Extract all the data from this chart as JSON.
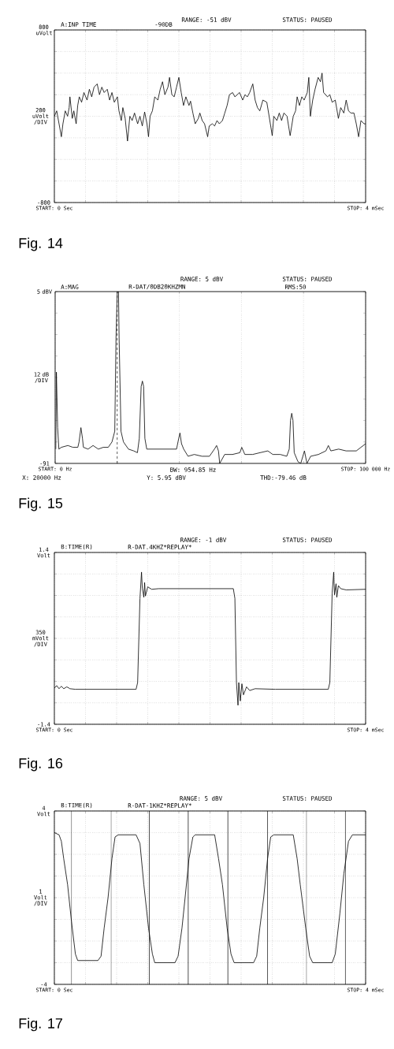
{
  "chart_data": [
    {
      "type": "line",
      "title": "A:INP TIME",
      "subtitle": "-90DB",
      "ylabel": "200 uVolt /DIV",
      "color": "#000000",
      "grid": true,
      "annotations": [
        "RANGE: -51 dBV",
        "STATUS: PAUSED",
        "Fig. 14"
      ],
      "xlim": [
        0,
        4
      ],
      "ylim": [
        -800,
        800
      ],
      "xticks": [
        {
          "value": 0,
          "label": "START: 0 Sec"
        },
        {
          "value": 0.4,
          "label": null
        },
        {
          "value": 0.8,
          "label": null
        },
        {
          "value": 1.2,
          "label": null
        },
        {
          "value": 1.6,
          "label": null
        },
        {
          "value": 2,
          "label": null
        },
        {
          "value": 2.4,
          "label": null
        },
        {
          "value": 2.8,
          "label": null
        },
        {
          "value": 3.2,
          "label": null
        },
        {
          "value": 3.6,
          "label": null
        },
        {
          "value": 4,
          "label": "STOP: 4 mSec"
        }
      ],
      "yticks": [
        {
          "value": -800,
          "label": "-800"
        },
        {
          "value": -600,
          "label": null
        },
        {
          "value": -400,
          "label": null
        },
        {
          "value": -200,
          "label": null
        },
        {
          "value": 0,
          "label": null
        },
        {
          "value": 200,
          "label": null
        },
        {
          "value": 400,
          "label": null
        },
        {
          "value": 600,
          "label": null
        },
        {
          "value": 800,
          "label": "800 uVolt"
        }
      ],
      "x": [
        0,
        0.03,
        0.06,
        0.09,
        0.11,
        0.14,
        0.17,
        0.19,
        0.2,
        0.23,
        0.25,
        0.28,
        0.3,
        0.32,
        0.35,
        0.38,
        0.42,
        0.45,
        0.48,
        0.51,
        0.55,
        0.58,
        0.61,
        0.64,
        0.68,
        0.71,
        0.74,
        0.77,
        0.81,
        0.83,
        0.86,
        0.88,
        0.91,
        0.94,
        0.97,
        1.0,
        1.03,
        1.07,
        1.1,
        1.13,
        1.16,
        1.19,
        1.21,
        1.23,
        1.26,
        1.29,
        1.33,
        1.36,
        1.39,
        1.42,
        1.46,
        1.48,
        1.51,
        1.54,
        1.57,
        1.6,
        1.63,
        1.66,
        1.69,
        1.73,
        1.75,
        1.78,
        1.81,
        1.85,
        1.87,
        1.9,
        1.93,
        1.97,
        1.99,
        2.03,
        2.06,
        2.09,
        2.12,
        2.16,
        2.19,
        2.22,
        2.25,
        2.29,
        2.32,
        2.35,
        2.38,
        2.42,
        2.45,
        2.48,
        2.51,
        2.55,
        2.58,
        2.61,
        2.64,
        2.68,
        2.73,
        2.76,
        2.8,
        2.82,
        2.86,
        2.89,
        2.92,
        2.95,
        2.99,
        3.03,
        3.07,
        3.1,
        3.12,
        3.15,
        3.18,
        3.21,
        3.25,
        3.27,
        3.29,
        3.32,
        3.35,
        3.39,
        3.42,
        3.44,
        3.46,
        3.51,
        3.54,
        3.57,
        3.61,
        3.65,
        3.68,
        3.72,
        3.75,
        3.78,
        3.81,
        3.85,
        3.88,
        3.91,
        3.94,
        3.98,
        4.0
      ],
      "values": [
        0,
        50,
        -70,
        -190,
        -70,
        50,
        0,
        80,
        180,
        -20,
        50,
        -70,
        100,
        180,
        130,
        220,
        150,
        250,
        180,
        270,
        300,
        200,
        270,
        220,
        250,
        150,
        220,
        130,
        180,
        50,
        -40,
        80,
        -20,
        -230,
        0,
        -40,
        30,
        -70,
        0,
        -90,
        40,
        -70,
        -190,
        0,
        50,
        180,
        150,
        250,
        320,
        200,
        270,
        360,
        200,
        180,
        270,
        360,
        220,
        100,
        180,
        100,
        140,
        30,
        -70,
        -20,
        30,
        -40,
        -70,
        -190,
        -90,
        -70,
        -90,
        -40,
        -70,
        -40,
        30,
        100,
        200,
        220,
        180,
        200,
        220,
        150,
        200,
        180,
        220,
        300,
        150,
        80,
        50,
        150,
        130,
        0,
        -180,
        0,
        -40,
        30,
        -40,
        30,
        0,
        -180,
        0,
        50,
        180,
        100,
        180,
        150,
        220,
        360,
        0,
        150,
        250,
        360,
        320,
        400,
        220,
        180,
        200,
        130,
        150,
        -20,
        80,
        30,
        150,
        50,
        30,
        30,
        -70,
        -190,
        -40,
        -70,
        -70
      ]
    },
    {
      "type": "line",
      "title": "A:MAG",
      "subtitle": "R-DAT/0DB20KHZMN",
      "ylabel": "12 dB /DIV",
      "color": "#000000",
      "grid": "x",
      "annotations": [
        "RANGE: 5 dBV",
        "STATUS: PAUSED",
        "RMS:50",
        "BW: 954.85 Hz",
        "X: 20000 Hz",
        "Y: 5.95 dBV",
        "THD:-79.46 dB",
        "Fig. 15"
      ],
      "ref_lines": [
        {
          "axis": "x",
          "value": 20000,
          "line_style": "dashed"
        }
      ],
      "xlim": [
        0,
        100000
      ],
      "ylim": [
        -91,
        5
      ],
      "xticks": [
        {
          "value": 0,
          "label": "START: 0 Hz"
        },
        {
          "value": 20000,
          "label": null
        },
        {
          "value": 40000,
          "label": null
        },
        {
          "value": 60000,
          "label": null
        },
        {
          "value": 80000,
          "label": null
        },
        {
          "value": 100000,
          "label": "STOP: 100 000 Hz"
        }
      ],
      "yticks": [
        {
          "value": -91,
          "label": "-91"
        },
        {
          "value": -79,
          "label": null
        },
        {
          "value": -67,
          "label": null
        },
        {
          "value": -55,
          "label": null
        },
        {
          "value": -43,
          "label": null
        },
        {
          "value": -31,
          "label": null
        },
        {
          "value": -19,
          "label": null
        },
        {
          "value": -7,
          "label": null
        },
        {
          "value": 5,
          "label": "5 dBV"
        }
      ],
      "x": [
        200,
        400,
        800,
        1200,
        2000,
        4100,
        5700,
        7300,
        7700,
        8300,
        8800,
        9100,
        10600,
        12200,
        13900,
        15500,
        17100,
        18300,
        19200,
        19600,
        20000,
        20400,
        20600,
        21200,
        22000,
        23600,
        25300,
        26500,
        27100,
        27700,
        28100,
        28500,
        28900,
        29500,
        31800,
        35000,
        36700,
        39100,
        39800,
        40200,
        40700,
        41400,
        42800,
        44800,
        47300,
        49700,
        51300,
        52000,
        52600,
        53000,
        54600,
        57100,
        59500,
        60100,
        61100,
        63600,
        66000,
        68500,
        70100,
        72500,
        74600,
        75400,
        75800,
        76200,
        76600,
        77000,
        78200,
        79100,
        80300,
        81100,
        82300,
        84800,
        87200,
        88000,
        88800,
        91300,
        93700,
        97000,
        100000
      ],
      "values": [
        -83,
        -40,
        -71,
        -83,
        -82,
        -81,
        -82,
        -82,
        -79,
        -71,
        -77,
        -82,
        -83,
        -81,
        -83,
        -82,
        -82,
        -79,
        -73,
        -21,
        5,
        5,
        -21,
        -73,
        -79,
        -83,
        -84,
        -85,
        -77,
        -48,
        -45,
        -48,
        -77,
        -83,
        -83,
        -83,
        -83,
        -83,
        -77,
        -74,
        -80,
        -83,
        -87,
        -86,
        -87,
        -87,
        -83,
        -81,
        -84,
        -91,
        -86,
        -86,
        -85,
        -82,
        -86,
        -86,
        -85,
        -84,
        -86,
        -86,
        -87,
        -83,
        -67,
        -63,
        -67,
        -85,
        -90,
        -91,
        -84,
        -91,
        -87,
        -86,
        -84,
        -81,
        -84,
        -83,
        -84,
        -84,
        -80
      ]
    },
    {
      "type": "line",
      "title": "B:TIME(R)",
      "subtitle": "R-DAT.4KHZ*REPLAY*",
      "ylabel": "350 mVolt /DIV",
      "color": "#000000",
      "grid": true,
      "annotations": [
        "RANGE: -1 dBV",
        "STATUS: PAUSED",
        "Fig. 16"
      ],
      "xlim": [
        0,
        4
      ],
      "ylim": [
        -1.4,
        1.4
      ],
      "xticks": [
        {
          "value": 0,
          "label": "START: 0 Sec"
        },
        {
          "value": 0.4,
          "label": null
        },
        {
          "value": 0.8,
          "label": null
        },
        {
          "value": 1.2,
          "label": null
        },
        {
          "value": 1.6,
          "label": null
        },
        {
          "value": 2,
          "label": null
        },
        {
          "value": 2.4,
          "label": null
        },
        {
          "value": 2.8,
          "label": null
        },
        {
          "value": 3.2,
          "label": null
        },
        {
          "value": 3.6,
          "label": null
        },
        {
          "value": 4,
          "label": "STOP: 4 mSec"
        }
      ],
      "yticks": [
        {
          "value": -1.4,
          "label": "-1.4"
        },
        {
          "value": -1.05,
          "label": null
        },
        {
          "value": -0.7,
          "label": null
        },
        {
          "value": -0.35,
          "label": null
        },
        {
          "value": 0,
          "label": null
        },
        {
          "value": 0.35,
          "label": null
        },
        {
          "value": 0.7,
          "label": null
        },
        {
          "value": 1.05,
          "label": null
        },
        {
          "value": 1.4,
          "label": "1.4 Volt"
        }
      ],
      "x": [
        0,
        0.03,
        0.06,
        0.09,
        0.12,
        0.16,
        0.2,
        0.27,
        1.05,
        1.07,
        1.1,
        1.12,
        1.13,
        1.15,
        1.16,
        1.17,
        1.2,
        1.25,
        1.34,
        2.3,
        2.32,
        2.34,
        2.36,
        2.37,
        2.39,
        2.41,
        2.43,
        2.47,
        2.51,
        2.58,
        2.84,
        3.52,
        3.54,
        3.57,
        3.59,
        3.6,
        3.62,
        3.63,
        3.65,
        3.68,
        3.75,
        4
      ],
      "values": [
        -0.81,
        -0.77,
        -0.82,
        -0.78,
        -0.82,
        -0.79,
        -0.82,
        -0.83,
        -0.83,
        -0.72,
        0.65,
        1.08,
        0.82,
        0.67,
        0.91,
        0.69,
        0.84,
        0.8,
        0.81,
        0.81,
        0.65,
        -0.72,
        -1.09,
        -0.72,
        -1.02,
        -0.74,
        -0.92,
        -0.79,
        -0.85,
        -0.82,
        -0.83,
        -0.83,
        -0.72,
        0.74,
        1.08,
        0.71,
        0.89,
        0.67,
        0.86,
        0.81,
        0.79,
        0.8
      ]
    },
    {
      "type": "line",
      "title": "B:TIME(R)",
      "subtitle": "R-DAT-1KHZ*REPLAY*",
      "ylabel": "1 Volt /DIV",
      "color": "#000000",
      "grid": true,
      "annotations": [
        "RANGE: 5 dBV",
        "STATUS: PAUSED",
        "Fig. 17"
      ],
      "ref_lines": [
        {
          "axis": "x",
          "value": 0.22,
          "line_style": "solid"
        },
        {
          "axis": "x",
          "value": 0.73,
          "line_style": "solid"
        },
        {
          "axis": "x",
          "value": 1.22,
          "line_style": "solid"
        },
        {
          "axis": "x",
          "value": 1.72,
          "line_style": "solid"
        },
        {
          "axis": "x",
          "value": 2.23,
          "line_style": "solid"
        },
        {
          "axis": "x",
          "value": 2.74,
          "line_style": "solid"
        },
        {
          "axis": "x",
          "value": 3.24,
          "line_style": "solid"
        },
        {
          "axis": "x",
          "value": 3.74,
          "line_style": "solid"
        }
      ],
      "xlim": [
        0,
        4
      ],
      "ylim": [
        -4,
        4
      ],
      "xticks": [
        {
          "value": 0,
          "label": "START: 0 Sec"
        },
        {
          "value": 0.4,
          "label": null
        },
        {
          "value": 0.8,
          "label": null
        },
        {
          "value": 1.2,
          "label": null
        },
        {
          "value": 1.6,
          "label": null
        },
        {
          "value": 2,
          "label": null
        },
        {
          "value": 2.4,
          "label": null
        },
        {
          "value": 2.8,
          "label": null
        },
        {
          "value": 3.2,
          "label": null
        },
        {
          "value": 3.6,
          "label": null
        },
        {
          "value": 4,
          "label": "STOP: 4 mSec"
        }
      ],
      "yticks": [
        {
          "value": -4,
          "label": "-4"
        },
        {
          "value": -3,
          "label": null
        },
        {
          "value": -2,
          "label": null
        },
        {
          "value": -1,
          "label": null
        },
        {
          "value": 0,
          "label": null
        },
        {
          "value": 1,
          "label": null
        },
        {
          "value": 2,
          "label": null
        },
        {
          "value": 3,
          "label": null
        },
        {
          "value": 4,
          "label": "4 Volt"
        }
      ],
      "x": [
        0,
        0.06,
        0.09,
        0.12,
        0.17,
        0.22,
        0.27,
        0.3,
        0.56,
        0.6,
        0.64,
        0.69,
        0.74,
        0.78,
        0.82,
        1.05,
        1.1,
        1.15,
        1.21,
        1.26,
        1.29,
        1.55,
        1.59,
        1.64,
        1.68,
        1.73,
        1.78,
        1.81,
        2.06,
        2.11,
        2.16,
        2.22,
        2.27,
        2.31,
        2.56,
        2.6,
        2.64,
        2.69,
        2.74,
        2.78,
        2.82,
        3.07,
        3.12,
        3.16,
        3.23,
        3.28,
        3.32,
        3.57,
        3.61,
        3.67,
        3.72,
        3.78,
        3.83,
        3.93,
        4
      ],
      "values": [
        3.0,
        2.9,
        2.6,
        1.8,
        0.6,
        -1.1,
        -2.6,
        -2.9,
        -2.9,
        -2.7,
        -1.4,
        0.0,
        1.8,
        2.8,
        2.9,
        2.9,
        2.5,
        0.6,
        -1.4,
        -2.6,
        -3.0,
        -3.0,
        -2.7,
        -1.4,
        0.0,
        1.8,
        2.8,
        2.9,
        2.9,
        1.8,
        0.6,
        -1.4,
        -2.6,
        -3.0,
        -3.0,
        -2.7,
        -1.4,
        0.0,
        1.8,
        2.8,
        2.9,
        2.9,
        1.8,
        0.6,
        -1.4,
        -2.7,
        -3.0,
        -3.0,
        -2.6,
        -0.7,
        1.1,
        2.6,
        2.9,
        2.9,
        2.9
      ]
    }
  ]
}
